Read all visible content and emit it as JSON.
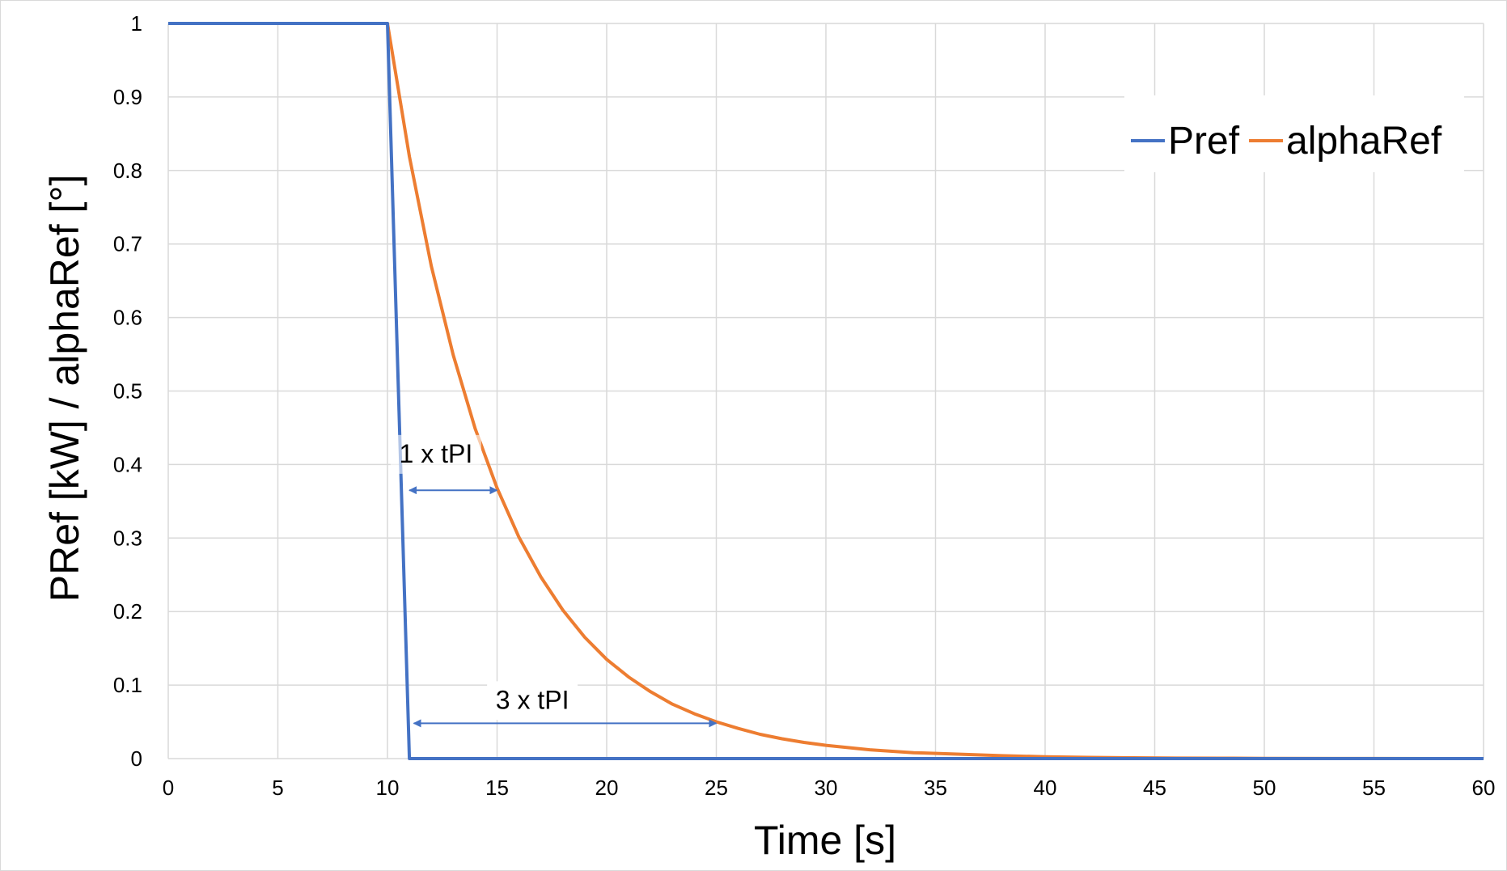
{
  "chart_data": {
    "type": "line",
    "xlabel": "Time [s]",
    "ylabel": "PRef [kW] / alphaRef [°]",
    "xlim": [
      0,
      60
    ],
    "ylim": [
      0,
      1
    ],
    "x_ticks": [
      0,
      5,
      10,
      15,
      20,
      25,
      30,
      35,
      40,
      45,
      50,
      55,
      60
    ],
    "y_ticks": [
      0,
      0.1,
      0.2,
      0.3,
      0.4,
      0.5,
      0.6,
      0.7,
      0.8,
      0.9,
      1
    ],
    "grid": true,
    "legend_position": "top-right",
    "series": [
      {
        "name": "Pref",
        "color": "#4472C4",
        "x": [
          0,
          10,
          11,
          60
        ],
        "y": [
          1,
          1,
          0,
          0
        ]
      },
      {
        "name": "alphaRef",
        "color": "#ED7D31",
        "x": [
          0,
          10,
          11,
          12,
          13,
          14,
          15,
          16,
          17,
          18,
          19,
          20,
          21,
          22,
          23,
          24,
          25,
          26,
          27,
          28,
          29,
          30,
          32,
          34,
          36,
          38,
          40,
          42,
          44,
          46,
          48,
          50,
          55,
          60
        ],
        "y": [
          1,
          1,
          0.819,
          0.67,
          0.549,
          0.449,
          0.368,
          0.301,
          0.247,
          0.202,
          0.165,
          0.135,
          0.111,
          0.091,
          0.074,
          0.061,
          0.05,
          0.041,
          0.033,
          0.027,
          0.022,
          0.018,
          0.012,
          0.008,
          0.006,
          0.004,
          0.0025,
          0.0017,
          0.0011,
          0.0007,
          0.0005,
          0.0003,
          0.0001,
          0.0
        ]
      }
    ],
    "annotations": [
      {
        "text": "1 x tPI",
        "arrow_x": [
          11,
          15
        ],
        "arrow_y": 0.365,
        "label_x": 12.8,
        "label_y": 0.405
      },
      {
        "text": "3 x tPI",
        "arrow_x": [
          11.2,
          25
        ],
        "arrow_y": 0.048,
        "label_x": 17.2,
        "label_y": 0.07
      }
    ]
  }
}
